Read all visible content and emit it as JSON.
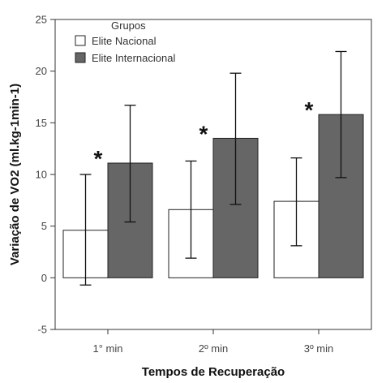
{
  "chart_data": {
    "type": "bar",
    "categories": [
      "1° min",
      "2º min",
      "3º min"
    ],
    "series": [
      {
        "name": "Elite Nacional",
        "color": "#ffffff",
        "values": [
          4.6,
          6.6,
          7.4
        ],
        "error_low": [
          -0.7,
          1.9,
          3.1
        ],
        "error_high": [
          10.0,
          11.3,
          11.6
        ]
      },
      {
        "name": "Elite Internacional",
        "color": "#666666",
        "values": [
          11.1,
          13.5,
          15.8
        ],
        "error_low": [
          5.4,
          7.1,
          9.7
        ],
        "error_high": [
          16.7,
          19.8,
          21.9
        ]
      }
    ],
    "significance_marks": [
      "*",
      "*",
      "*"
    ],
    "legend_title": "Grupos",
    "legend_position": "top-left",
    "xlabel": "Tempos de Recuperação",
    "ylabel": "Variação de VO2 (ml.kg-1min-1)",
    "ylim": [
      -5,
      25
    ],
    "yticks": [
      -5,
      0,
      5,
      10,
      15,
      20,
      25
    ],
    "grid": false
  }
}
